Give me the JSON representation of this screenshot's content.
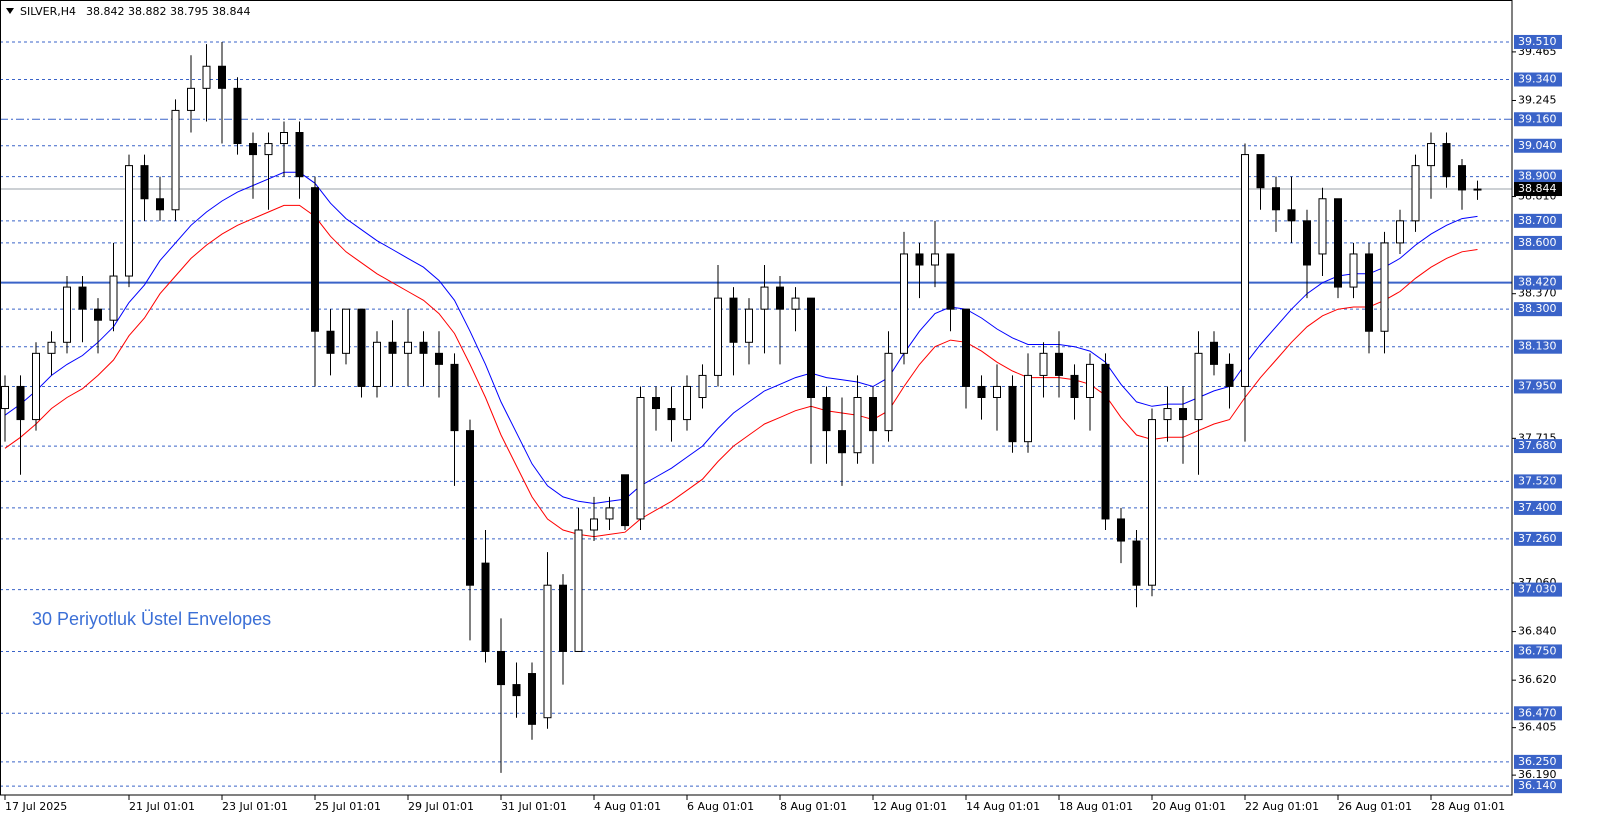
{
  "chart_data": {
    "type": "candlestick",
    "symbol": "SILVER,H4",
    "ohlc_header": "38.842 38.882 38.795 38.844",
    "annotation": "30 Periyotluk Üstel Envelopes",
    "ylim": [
      36.1,
      39.7
    ],
    "xlim": [
      0,
      97
    ],
    "yticks": [
      {
        "value": 39.465,
        "label": "39.465"
      },
      {
        "value": 39.245,
        "label": "39.245"
      },
      {
        "value": 38.81,
        "label": "38.810"
      },
      {
        "value": 38.37,
        "label": "38.370"
      },
      {
        "value": 37.715,
        "label": "37.715"
      },
      {
        "value": 37.06,
        "label": "37.060"
      },
      {
        "value": 36.84,
        "label": "36.840"
      },
      {
        "value": 36.62,
        "label": "36.620"
      },
      {
        "value": 36.405,
        "label": "36.405"
      },
      {
        "value": 36.19,
        "label": "36.190"
      }
    ],
    "levels": [
      {
        "value": 39.51,
        "label": "39.510",
        "style": "dash"
      },
      {
        "value": 39.34,
        "label": "39.340",
        "style": "dash"
      },
      {
        "value": 39.16,
        "label": "39.160",
        "style": "dashdot"
      },
      {
        "value": 39.04,
        "label": "39.040",
        "style": "dash"
      },
      {
        "value": 38.9,
        "label": "38.900",
        "style": "dash"
      },
      {
        "value": 38.7,
        "label": "38.700",
        "style": "dash"
      },
      {
        "value": 38.6,
        "label": "38.600",
        "style": "dash"
      },
      {
        "value": 38.42,
        "label": "38.420",
        "style": "solid"
      },
      {
        "value": 38.3,
        "label": "38.300",
        "style": "dash"
      },
      {
        "value": 38.13,
        "label": "38.130",
        "style": "dash"
      },
      {
        "value": 37.95,
        "label": "37.950",
        "style": "dash"
      },
      {
        "value": 37.68,
        "label": "37.680",
        "style": "dash"
      },
      {
        "value": 37.52,
        "label": "37.520",
        "style": "dash"
      },
      {
        "value": 37.4,
        "label": "37.400",
        "style": "dash"
      },
      {
        "value": 37.26,
        "label": "37.260",
        "style": "dash"
      },
      {
        "value": 37.03,
        "label": "37.030",
        "style": "dash"
      },
      {
        "value": 36.75,
        "label": "36.750",
        "style": "dash"
      },
      {
        "value": 36.47,
        "label": "36.470",
        "style": "dash"
      },
      {
        "value": 36.25,
        "label": "36.250",
        "style": "dash"
      },
      {
        "value": 36.14,
        "label": "36.140",
        "style": "dash"
      }
    ],
    "last": {
      "value": 38.844,
      "label": "38.844"
    },
    "xticks": [
      {
        "value": 0,
        "label": "17 Jul 2025"
      },
      {
        "value": 8,
        "label": "21 Jul 01:01"
      },
      {
        "value": 14,
        "label": "23 Jul 01:01"
      },
      {
        "value": 20,
        "label": "25 Jul 01:01"
      },
      {
        "value": 26,
        "label": "29 Jul 01:01"
      },
      {
        "value": 32,
        "label": "31 Jul 01:01"
      },
      {
        "value": 38,
        "label": "4 Aug 01:01"
      },
      {
        "value": 44,
        "label": "6 Aug 01:01"
      },
      {
        "value": 50,
        "label": "8 Aug 01:01"
      },
      {
        "value": 56,
        "label": "12 Aug 01:01"
      },
      {
        "value": 62,
        "label": "14 Aug 01:01"
      },
      {
        "value": 68,
        "label": "18 Aug 01:01"
      },
      {
        "value": 74,
        "label": "20 Aug 01:01"
      },
      {
        "value": 80,
        "label": "22 Aug 01:01"
      },
      {
        "value": 86,
        "label": "26 Aug 01:01"
      },
      {
        "value": 92,
        "label": "28 Aug 01:01"
      }
    ],
    "candles": {
      "open": [
        37.85,
        37.95,
        37.8,
        38.1,
        38.15,
        38.4,
        38.3,
        38.25,
        38.45,
        38.95,
        38.8,
        38.75,
        39.2,
        39.3,
        39.4,
        39.3,
        39.05,
        39.0,
        39.05,
        39.1,
        38.85,
        38.2,
        38.1,
        38.3,
        37.95,
        38.15,
        38.1,
        38.15,
        38.1,
        38.05,
        37.75,
        37.15,
        36.75,
        36.6,
        36.65,
        36.45,
        37.05,
        36.75,
        37.3,
        37.35,
        37.55,
        37.35,
        37.9,
        37.85,
        37.8,
        37.9,
        38.0,
        38.35,
        38.15,
        38.3,
        38.4,
        38.3,
        38.35,
        37.9,
        37.75,
        37.65,
        37.9,
        37.75,
        38.1,
        38.55,
        38.5,
        38.55,
        38.3,
        37.95,
        37.9,
        37.95,
        37.7,
        38.0,
        38.1,
        38.0,
        37.9,
        38.05,
        37.35,
        37.25,
        37.05,
        37.8,
        37.85,
        37.8,
        38.15,
        38.05,
        37.95,
        39.0,
        38.85,
        38.75,
        38.7,
        38.55,
        38.8,
        38.4,
        38.55,
        38.2,
        38.6,
        38.7,
        38.95,
        39.05,
        38.95,
        38.842
      ],
      "high": [
        38.0,
        38.0,
        38.15,
        38.2,
        38.45,
        38.45,
        38.35,
        38.6,
        39.0,
        39.0,
        38.9,
        39.25,
        39.45,
        39.5,
        39.51,
        39.35,
        39.1,
        39.1,
        39.15,
        39.15,
        38.9,
        38.3,
        38.3,
        38.3,
        38.2,
        38.25,
        38.3,
        38.2,
        38.2,
        38.1,
        37.8,
        37.3,
        36.9,
        36.7,
        36.7,
        37.2,
        37.1,
        37.4,
        37.45,
        37.45,
        37.55,
        37.95,
        37.95,
        37.95,
        38.0,
        38.05,
        38.5,
        38.4,
        38.35,
        38.5,
        38.45,
        38.4,
        38.35,
        37.95,
        37.9,
        38.0,
        37.95,
        38.2,
        38.65,
        38.6,
        38.7,
        38.55,
        38.3,
        38.0,
        38.05,
        38.0,
        38.1,
        38.15,
        38.2,
        38.05,
        38.1,
        38.1,
        37.4,
        37.3,
        37.85,
        37.95,
        37.95,
        38.2,
        38.2,
        38.1,
        39.05,
        39.0,
        38.9,
        38.9,
        38.75,
        38.85,
        38.8,
        38.6,
        38.6,
        38.65,
        38.75,
        39.0,
        39.1,
        39.1,
        38.98,
        38.882
      ],
      "low": [
        37.7,
        37.55,
        37.75,
        38.0,
        38.1,
        38.15,
        38.1,
        38.2,
        38.4,
        38.7,
        38.7,
        38.7,
        39.1,
        39.15,
        39.05,
        39.0,
        38.8,
        38.75,
        38.9,
        38.8,
        37.95,
        38.0,
        38.05,
        37.9,
        37.9,
        37.95,
        37.95,
        37.95,
        37.9,
        37.5,
        36.8,
        36.7,
        36.2,
        36.45,
        36.35,
        36.4,
        36.6,
        36.75,
        37.25,
        37.3,
        37.3,
        37.3,
        37.75,
        37.7,
        37.75,
        37.85,
        37.95,
        38.0,
        38.05,
        38.1,
        38.05,
        38.2,
        37.6,
        37.6,
        37.5,
        37.6,
        37.6,
        37.7,
        38.05,
        38.35,
        38.4,
        38.2,
        37.85,
        37.8,
        37.75,
        37.65,
        37.65,
        37.9,
        37.9,
        37.8,
        37.75,
        37.3,
        37.15,
        36.95,
        37.0,
        37.7,
        37.6,
        37.55,
        38.0,
        37.85,
        37.7,
        38.75,
        38.65,
        38.6,
        38.35,
        38.45,
        38.35,
        38.35,
        38.1,
        38.1,
        38.55,
        38.65,
        38.8,
        38.85,
        38.75,
        38.795
      ],
      "close": [
        37.95,
        37.8,
        38.1,
        38.15,
        38.4,
        38.3,
        38.25,
        38.45,
        38.95,
        38.8,
        38.75,
        39.2,
        39.3,
        39.4,
        39.3,
        39.05,
        39.0,
        39.05,
        39.1,
        38.9,
        38.2,
        38.1,
        38.3,
        37.95,
        38.15,
        38.1,
        38.15,
        38.1,
        38.05,
        37.75,
        37.05,
        36.75,
        36.6,
        36.55,
        36.42,
        37.05,
        36.75,
        37.3,
        37.35,
        37.4,
        37.32,
        37.9,
        37.85,
        37.8,
        37.95,
        38.0,
        38.35,
        38.15,
        38.3,
        38.4,
        38.3,
        38.35,
        37.9,
        37.75,
        37.65,
        37.9,
        37.75,
        38.1,
        38.55,
        38.5,
        38.55,
        38.3,
        37.95,
        37.9,
        37.95,
        37.7,
        38.0,
        38.1,
        38.0,
        37.9,
        38.05,
        37.35,
        37.25,
        37.05,
        37.8,
        37.85,
        37.8,
        38.1,
        38.05,
        37.95,
        39.0,
        38.85,
        38.75,
        38.7,
        38.5,
        38.8,
        38.4,
        38.55,
        38.2,
        38.6,
        38.7,
        38.95,
        39.05,
        38.9,
        38.84,
        38.844
      ]
    },
    "series": [
      {
        "color": "#0000ff",
        "values": [
          37.82,
          37.87,
          37.93,
          38.0,
          38.05,
          38.09,
          38.15,
          38.22,
          38.33,
          38.41,
          38.52,
          38.6,
          38.68,
          38.74,
          38.79,
          38.83,
          38.86,
          38.89,
          38.92,
          38.92,
          38.87,
          38.78,
          38.71,
          38.66,
          38.61,
          38.57,
          38.53,
          38.49,
          38.43,
          38.34,
          38.2,
          38.05,
          37.88,
          37.74,
          37.6,
          37.5,
          37.45,
          37.43,
          37.42,
          37.43,
          37.44,
          37.5,
          37.54,
          37.58,
          37.63,
          37.68,
          37.76,
          37.83,
          37.88,
          37.93,
          37.96,
          37.99,
          38.01,
          37.99,
          37.98,
          37.97,
          37.95,
          37.99,
          38.1,
          38.2,
          38.28,
          38.31,
          38.3,
          38.26,
          38.21,
          38.17,
          38.14,
          38.14,
          38.14,
          38.13,
          38.11,
          38.06,
          37.96,
          37.88,
          37.86,
          37.87,
          37.87,
          37.9,
          37.93,
          37.95,
          38.05,
          38.14,
          38.22,
          38.3,
          38.37,
          38.42,
          38.45,
          38.46,
          38.46,
          38.49,
          38.53,
          38.59,
          38.64,
          38.68,
          38.71,
          38.72
        ]
      },
      {
        "color": "#ff0000",
        "values": [
          37.67,
          37.72,
          37.78,
          37.85,
          37.9,
          37.94,
          38.0,
          38.07,
          38.18,
          38.26,
          38.37,
          38.45,
          38.53,
          38.59,
          38.64,
          38.68,
          38.71,
          38.74,
          38.77,
          38.77,
          38.72,
          38.63,
          38.56,
          38.51,
          38.46,
          38.42,
          38.38,
          38.34,
          38.28,
          38.19,
          38.05,
          37.9,
          37.73,
          37.59,
          37.45,
          37.35,
          37.3,
          37.28,
          37.27,
          37.28,
          37.29,
          37.35,
          37.39,
          37.43,
          37.48,
          37.53,
          37.61,
          37.68,
          37.73,
          37.78,
          37.81,
          37.84,
          37.86,
          37.84,
          37.83,
          37.82,
          37.8,
          37.84,
          37.95,
          38.05,
          38.13,
          38.16,
          38.15,
          38.11,
          38.06,
          38.02,
          37.99,
          37.99,
          37.99,
          37.98,
          37.96,
          37.91,
          37.81,
          37.73,
          37.71,
          37.72,
          37.72,
          37.75,
          37.78,
          37.8,
          37.9,
          37.99,
          38.07,
          38.15,
          38.22,
          38.27,
          38.3,
          38.31,
          38.31,
          38.34,
          38.38,
          38.44,
          38.49,
          38.53,
          38.56,
          38.57
        ]
      }
    ]
  }
}
